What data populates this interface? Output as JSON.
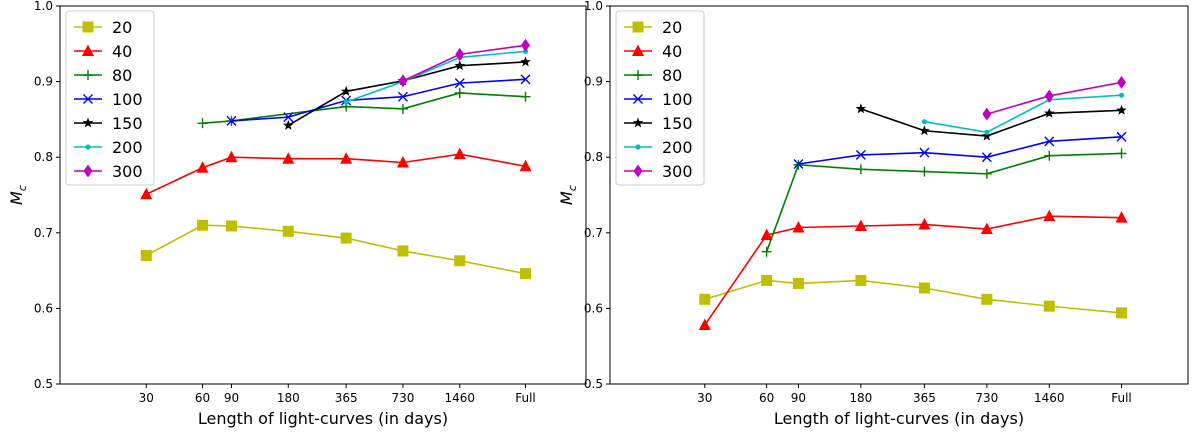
{
  "chart_data": [
    {
      "type": "line",
      "xlabel": "Length of light-curves (in days)",
      "ylabel": "M",
      "ylabel_sub": "c",
      "categories": [
        "30",
        "60",
        "90",
        "180",
        "365",
        "730",
        "1460",
        "Full"
      ],
      "ylim": [
        0.5,
        1.0
      ],
      "yticks": [
        "0.5",
        "0.6",
        "0.7",
        "0.8",
        "0.9",
        "1.0"
      ],
      "legend_position": "upper-left",
      "grid": false,
      "series": [
        {
          "name": "20",
          "color": "#bfbf00",
          "marker": "square",
          "values": [
            0.67,
            0.71,
            0.709,
            0.702,
            0.693,
            0.676,
            0.663,
            0.646
          ]
        },
        {
          "name": "40",
          "color": "#ff0000",
          "marker": "triangle",
          "values": [
            0.751,
            0.786,
            0.8,
            0.798,
            0.798,
            0.793,
            0.804,
            0.788
          ]
        },
        {
          "name": "80",
          "color": "#008000",
          "marker": "plus",
          "values": [
            null,
            0.845,
            0.848,
            null,
            0.867,
            0.864,
            0.885,
            0.88
          ]
        },
        {
          "name": "100",
          "color": "#0000ff",
          "marker": "x",
          "values": [
            null,
            null,
            0.848,
            0.853,
            0.875,
            0.88,
            0.898,
            0.903
          ]
        },
        {
          "name": "150",
          "color": "#000000",
          "marker": "star",
          "values": [
            null,
            null,
            null,
            0.842,
            0.887,
            0.901,
            0.921,
            0.926
          ]
        },
        {
          "name": "200",
          "color": "#00bfbf",
          "marker": "dot",
          "values": [
            null,
            null,
            null,
            null,
            0.873,
            0.9,
            0.932,
            0.94
          ]
        },
        {
          "name": "300",
          "color": "#bf00bf",
          "marker": "diamond",
          "values": [
            null,
            null,
            null,
            null,
            null,
            0.901,
            0.936,
            0.948
          ]
        }
      ]
    },
    {
      "type": "line",
      "xlabel": "Length of light-curves (in days)",
      "ylabel": "M",
      "ylabel_sub": "c",
      "categories": [
        "30",
        "60",
        "90",
        "180",
        "365",
        "730",
        "1460",
        "Full"
      ],
      "ylim": [
        0.5,
        1.0
      ],
      "yticks": [
        "0.5",
        "0.6",
        "0.7",
        "0.8",
        "0.9",
        "1.0"
      ],
      "legend_position": "upper-left",
      "grid": false,
      "series": [
        {
          "name": "20",
          "color": "#bfbf00",
          "marker": "square",
          "values": [
            0.612,
            0.637,
            0.633,
            0.637,
            0.627,
            0.612,
            0.603,
            0.594
          ]
        },
        {
          "name": "40",
          "color": "#ff0000",
          "marker": "triangle",
          "values": [
            0.578,
            0.697,
            0.707,
            0.709,
            0.711,
            0.705,
            0.722,
            0.72
          ]
        },
        {
          "name": "80",
          "color": "#008000",
          "marker": "plus",
          "values": [
            null,
            0.675,
            0.79,
            0.784,
            0.781,
            0.778,
            0.802,
            0.805
          ]
        },
        {
          "name": "100",
          "color": "#0000ff",
          "marker": "x",
          "values": [
            null,
            null,
            0.791,
            0.803,
            0.806,
            0.8,
            0.821,
            0.827
          ]
        },
        {
          "name": "150",
          "color": "#000000",
          "marker": "star",
          "values": [
            null,
            null,
            null,
            0.864,
            0.835,
            0.828,
            0.858,
            0.862
          ]
        },
        {
          "name": "200",
          "color": "#00bfbf",
          "marker": "dot",
          "values": [
            null,
            null,
            null,
            null,
            0.847,
            0.833,
            0.876,
            0.882
          ]
        },
        {
          "name": "300",
          "color": "#bf00bf",
          "marker": "diamond",
          "values": [
            null,
            null,
            null,
            null,
            null,
            0.857,
            0.881,
            0.899
          ]
        }
      ]
    }
  ]
}
